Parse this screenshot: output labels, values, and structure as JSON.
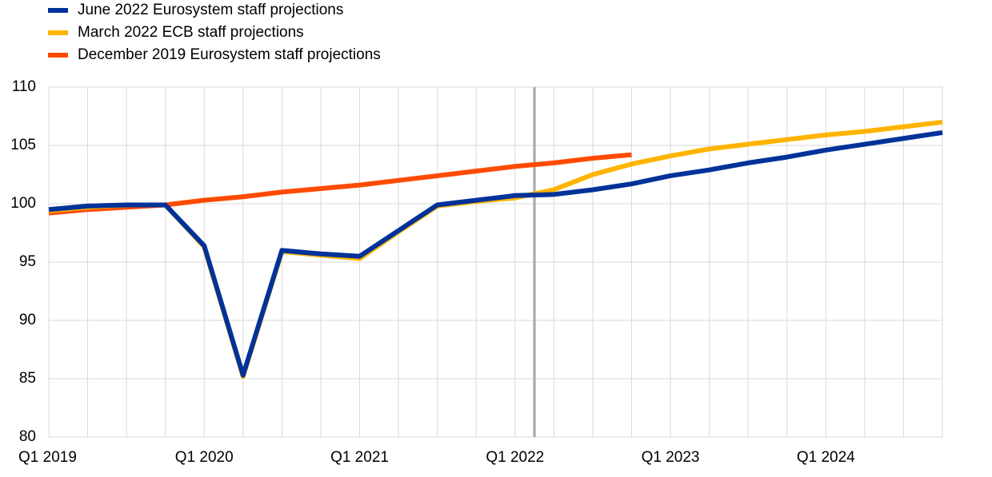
{
  "chart_data": {
    "type": "line",
    "categories": [
      "Q1 2019",
      null,
      null,
      null,
      "Q1 2020",
      null,
      null,
      null,
      "Q1 2021",
      null,
      null,
      null,
      "Q1 2022",
      null,
      null,
      null,
      "Q1 2023",
      null,
      null,
      null,
      "Q1 2024",
      null,
      null,
      null
    ],
    "series": [
      {
        "name": "June 2022 Eurosystem staff projections",
        "color": "#003299",
        "values": [
          99.5,
          99.8,
          99.9,
          99.9,
          96.4,
          85.3,
          96.0,
          95.7,
          95.5,
          97.7,
          99.9,
          100.3,
          100.7,
          100.8,
          101.2,
          101.7,
          102.4,
          102.9,
          103.5,
          104.0,
          104.6,
          105.1,
          105.6,
          106.1
        ]
      },
      {
        "name": "March 2022 ECB staff projections",
        "color": "#ffb400",
        "values": [
          99.4,
          99.7,
          99.9,
          99.9,
          96.3,
          85.2,
          95.9,
          95.6,
          95.3,
          97.6,
          99.8,
          100.2,
          100.5,
          101.2,
          102.5,
          103.4,
          104.1,
          104.7,
          105.1,
          105.5,
          105.9,
          106.2,
          106.6,
          107.0
        ]
      },
      {
        "name": "December 2019 Eurosystem staff projections",
        "color": "#ff4b00",
        "values": [
          99.2,
          99.5,
          99.7,
          99.9,
          100.3,
          100.6,
          101.0,
          101.3,
          101.6,
          102.0,
          102.4,
          102.8,
          103.2,
          103.5,
          103.9,
          104.2,
          null,
          null,
          null,
          null,
          null,
          null,
          null,
          null
        ]
      }
    ],
    "ylim": [
      80,
      110
    ],
    "yticks": [
      80,
      85,
      90,
      95,
      100,
      105,
      110
    ],
    "grid": true
  }
}
